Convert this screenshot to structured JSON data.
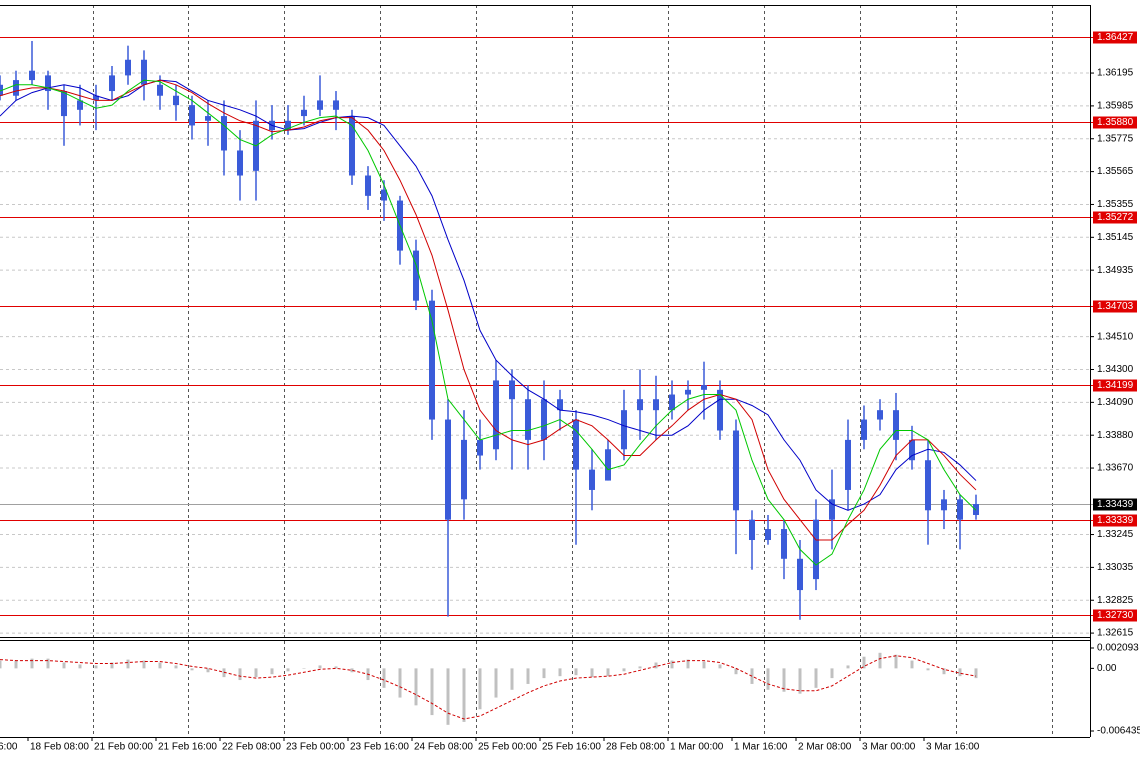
{
  "chart_data": {
    "type": "candlestick",
    "x": [
      0,
      4,
      8,
      12,
      16,
      20,
      24,
      28,
      32,
      36,
      40,
      44,
      48,
      52,
      56,
      60,
      64,
      68,
      72,
      76,
      80,
      84,
      88,
      92,
      96,
      100,
      104,
      108,
      112,
      116,
      120,
      124,
      128,
      132,
      136,
      140,
      144,
      148,
      152,
      156,
      160,
      164,
      168,
      172,
      176,
      180,
      184,
      188,
      192,
      196,
      200,
      204,
      208,
      212,
      216,
      220,
      224,
      228,
      232,
      236,
      240,
      244
    ],
    "open": [
      1.3612,
      1.3605,
      1.3615,
      1.3618,
      1.3608,
      1.3596,
      1.3602,
      1.3608,
      1.3618,
      1.3628,
      1.3612,
      1.3605,
      1.3599,
      1.3589,
      1.3592,
      1.357,
      1.3557,
      1.3589,
      1.3583,
      1.3592,
      1.3596,
      1.3602,
      1.3592,
      1.3554,
      1.3545,
      1.3538,
      1.3506,
      1.3474,
      1.3398,
      1.3347,
      1.3385,
      1.3379,
      1.3423,
      1.3411,
      1.3385,
      1.3411,
      1.3398,
      1.3366,
      1.3359,
      1.3379,
      1.3404,
      1.3411,
      1.3404,
      1.3414,
      1.3417,
      1.3417,
      1.3391,
      1.3334,
      1.3321,
      1.3328,
      1.3309,
      1.3296,
      1.3334,
      1.3353,
      1.3385,
      1.3398,
      1.3404,
      1.3385,
      1.3372,
      1.334,
      1.3347,
      1.3337
    ],
    "high": [
      1.3618,
      1.3621,
      1.364,
      1.3621,
      1.3612,
      1.3612,
      1.3612,
      1.3624,
      1.3637,
      1.3634,
      1.3618,
      1.3612,
      1.3605,
      1.3602,
      1.3602,
      1.3583,
      1.3602,
      1.3599,
      1.3599,
      1.3605,
      1.3618,
      1.3608,
      1.3596,
      1.356,
      1.3551,
      1.3541,
      1.3513,
      1.3481,
      1.3411,
      1.3404,
      1.3398,
      1.3436,
      1.343,
      1.342,
      1.3423,
      1.3417,
      1.3404,
      1.3379,
      1.3385,
      1.3417,
      1.343,
      1.3426,
      1.3423,
      1.3423,
      1.3435,
      1.3423,
      1.3398,
      1.334,
      1.3337,
      1.3334,
      1.3321,
      1.3347,
      1.3366,
      1.3398,
      1.3407,
      1.3411,
      1.3415,
      1.3394,
      1.3385,
      1.3353,
      1.335,
      1.335
    ],
    "low": [
      1.3602,
      1.3602,
      1.3612,
      1.3596,
      1.3573,
      1.3586,
      1.3583,
      1.3602,
      1.3612,
      1.3602,
      1.3596,
      1.3589,
      1.3577,
      1.3573,
      1.3554,
      1.3538,
      1.3538,
      1.3577,
      1.358,
      1.3586,
      1.3592,
      1.3583,
      1.3548,
      1.3532,
      1.3525,
      1.3497,
      1.3468,
      1.3385,
      1.3272,
      1.3334,
      1.3366,
      1.3372,
      1.3366,
      1.3366,
      1.3372,
      1.3391,
      1.3318,
      1.334,
      1.3359,
      1.3372,
      1.3385,
      1.3385,
      1.3398,
      1.3404,
      1.3398,
      1.3385,
      1.3312,
      1.3302,
      1.3318,
      1.3296,
      1.327,
      1.3289,
      1.3315,
      1.334,
      1.3379,
      1.3391,
      1.3372,
      1.3366,
      1.3318,
      1.3328,
      1.3315,
      1.3334
    ],
    "close": [
      1.3605,
      1.3615,
      1.3621,
      1.3608,
      1.3592,
      1.3602,
      1.3605,
      1.3618,
      1.3628,
      1.3612,
      1.3605,
      1.3599,
      1.3586,
      1.3592,
      1.357,
      1.3554,
      1.3589,
      1.3583,
      1.3589,
      1.3596,
      1.3602,
      1.3596,
      1.3554,
      1.3541,
      1.3538,
      1.3506,
      1.3474,
      1.3398,
      1.3334,
      1.3385,
      1.3375,
      1.3423,
      1.3411,
      1.3385,
      1.3411,
      1.3404,
      1.3366,
      1.3353,
      1.3379,
      1.3404,
      1.3411,
      1.3404,
      1.3414,
      1.3417,
      1.342,
      1.3391,
      1.334,
      1.3321,
      1.3328,
      1.3309,
      1.3289,
      1.3334,
      1.3347,
      1.3385,
      1.3398,
      1.3404,
      1.3385,
      1.3372,
      1.334,
      1.3347,
      1.3334,
      1.3344
    ],
    "color": "#3a5bd9",
    "ma_lines": [
      {
        "color": "#0000c8",
        "values": [
          1.3592,
          1.3602,
          1.3607,
          1.361,
          1.3612,
          1.361,
          1.3605,
          1.3602,
          1.3605,
          1.3612,
          1.3615,
          1.3614,
          1.3608,
          1.3602,
          1.3599,
          1.3596,
          1.3592,
          1.3586,
          1.3583,
          1.3584,
          1.3588,
          1.3591,
          1.3592,
          1.3591,
          1.3586,
          1.3573,
          1.356,
          1.3541,
          1.3513,
          1.3487,
          1.3455,
          1.3436,
          1.3426,
          1.3417,
          1.3411,
          1.3404,
          1.3403,
          1.3401,
          1.3398,
          1.3394,
          1.3391,
          1.3388,
          1.3388,
          1.3394,
          1.3404,
          1.3411,
          1.3411,
          1.3407,
          1.3401,
          1.3385,
          1.3372,
          1.3353,
          1.3344,
          1.334,
          1.3344,
          1.335,
          1.3366,
          1.3375,
          1.3379,
          1.3377,
          1.3369,
          1.3359
        ]
      },
      {
        "color": "#d00000",
        "values": [
          1.3605,
          1.3608,
          1.361,
          1.361,
          1.3608,
          1.3605,
          1.3602,
          1.3602,
          1.3607,
          1.3612,
          1.3615,
          1.3612,
          1.3607,
          1.36,
          1.3594,
          1.3589,
          1.3586,
          1.3582,
          1.3583,
          1.3585,
          1.3589,
          1.3591,
          1.3591,
          1.3583,
          1.357,
          1.3551,
          1.3529,
          1.3503,
          1.3468,
          1.343,
          1.3404,
          1.3391,
          1.3385,
          1.3382,
          1.3385,
          1.3392,
          1.3398,
          1.3394,
          1.3385,
          1.3375,
          1.3375,
          1.3385,
          1.3394,
          1.3404,
          1.3411,
          1.3414,
          1.3411,
          1.3398,
          1.3366,
          1.3347,
          1.3334,
          1.3321,
          1.3321,
          1.3331,
          1.334,
          1.3356,
          1.3375,
          1.3385,
          1.3385,
          1.3375,
          1.3363,
          1.3353
        ]
      },
      {
        "color": "#00c800",
        "values": [
          1.3608,
          1.3612,
          1.3612,
          1.361,
          1.3607,
          1.3602,
          1.3597,
          1.3599,
          1.3608,
          1.3615,
          1.3614,
          1.3608,
          1.3602,
          1.3594,
          1.3586,
          1.3577,
          1.3573,
          1.358,
          1.3584,
          1.3588,
          1.3591,
          1.3592,
          1.3586,
          1.357,
          1.3548,
          1.3522,
          1.3497,
          1.3461,
          1.3411,
          1.3398,
          1.3385,
          1.3388,
          1.3391,
          1.3391,
          1.3394,
          1.3398,
          1.3391,
          1.3379,
          1.3366,
          1.3369,
          1.3382,
          1.3394,
          1.3404,
          1.3411,
          1.3414,
          1.3414,
          1.3404,
          1.3372,
          1.3347,
          1.3334,
          1.3315,
          1.3305,
          1.3312,
          1.3334,
          1.3353,
          1.3379,
          1.3391,
          1.3391,
          1.3385,
          1.3366,
          1.335,
          1.334
        ]
      }
    ],
    "levels": [
      1.36427,
      {
        "value": 1.3588,
        "label": "1.35880"
      },
      1.35272,
      1.34703,
      1.34199,
      1.33339,
      {
        "value": 1.3273,
        "label": "1.32730"
      }
    ],
    "level_color": "#e00000",
    "current_price": 1.33439,
    "xlim": [
      0,
      272.5
    ],
    "ylim": [
      1.3259,
      1.3663
    ],
    "yticks": [
      1.36195,
      1.35985,
      1.35775,
      1.35565,
      1.35355,
      1.35145,
      1.34935,
      {
        "value": 1.3451,
        "label": "1.34510"
      },
      {
        "value": 1.343,
        "label": "1.34300"
      },
      {
        "value": 1.3409,
        "label": "1.34090"
      },
      {
        "value": 1.3388,
        "label": "1.33880"
      },
      {
        "value": 1.3367,
        "label": "1.33670"
      },
      1.33245,
      1.33035,
      1.32825,
      1.32615
    ],
    "xticks": [
      {
        "value": -1,
        "label": "6:00"
      },
      {
        "value": 7,
        "label": "18 Feb 08:00"
      },
      {
        "value": 23,
        "label": "21 Feb 00:00"
      },
      {
        "value": 39,
        "label": "21 Feb 16:00"
      },
      {
        "value": 55,
        "label": "22 Feb 08:00"
      },
      {
        "value": 71,
        "label": "23 Feb 00:00"
      },
      {
        "value": 87,
        "label": "23 Feb 16:00"
      },
      {
        "value": 103,
        "label": "24 Feb 08:00"
      },
      {
        "value": 119,
        "label": "25 Feb 00:00"
      },
      {
        "value": 135,
        "label": "25 Feb 16:00"
      },
      {
        "value": 151,
        "label": "28 Feb 08:00"
      },
      {
        "value": 167,
        "label": "1 Mar 00:00"
      },
      {
        "value": 183,
        "label": "1 Mar 16:00"
      },
      {
        "value": 199,
        "label": "2 Mar 08:00"
      },
      {
        "value": 215,
        "label": "3 Mar 00:00"
      },
      {
        "value": 231,
        "label": "3 Mar 16:00"
      }
    ],
    "x_grid": [
      23.25,
      47,
      71,
      95,
      119,
      143,
      167,
      191,
      215,
      239,
      263
    ],
    "grid": true,
    "oscillator": {
      "histogram": [
        0.0008,
        0.0008,
        0.001,
        0.001,
        0.0006,
        0.0004,
        0.0003,
        0.0006,
        0.0009,
        0.0008,
        0.0006,
        0.0003,
        -0.0002,
        -0.0004,
        -0.0009,
        -0.0012,
        -0.0009,
        -0.0006,
        -0.0003,
        0,
        0.0003,
        0.0002,
        -0.0004,
        -0.0012,
        -0.002,
        -0.003,
        -0.0038,
        -0.0048,
        -0.0058,
        -0.0055,
        -0.0042,
        -0.003,
        -0.0022,
        -0.0016,
        -0.001,
        -0.0008,
        -0.0007,
        -0.0009,
        -0.0008,
        -0.0003,
        0.0002,
        0.0006,
        0.0008,
        0.0009,
        0.0007,
        0.0004,
        -0.0006,
        -0.0016,
        -0.0022,
        -0.0024,
        -0.0026,
        -0.002,
        -0.001,
        0.0003,
        0.0012,
        0.0016,
        0.0014,
        0.0008,
        -0.0002,
        -0.0006,
        -0.0008,
        -0.001
      ],
      "histogram_color": "#c0c0c0",
      "signal": [
        0.0009,
        0.0008,
        0.0008,
        0.0008,
        0.0007,
        0.0006,
        0.0005,
        0.0005,
        0.0006,
        0.0007,
        0.0007,
        0.0005,
        0.0002,
        0,
        -0.0004,
        -0.0008,
        -0.001,
        -0.0009,
        -0.0007,
        -0.0004,
        -0.0001,
        0,
        -0.0002,
        -0.0006,
        -0.0012,
        -0.0019,
        -0.0027,
        -0.0036,
        -0.0046,
        -0.0052,
        -0.0049,
        -0.0041,
        -0.0033,
        -0.0025,
        -0.0018,
        -0.0013,
        -0.001,
        -0.0009,
        -0.0008,
        -0.0006,
        -0.0002,
        0.0002,
        0.0006,
        0.0008,
        0.0008,
        0.0006,
        0,
        -0.0008,
        -0.0016,
        -0.0021,
        -0.0023,
        -0.0023,
        -0.0018,
        -0.0008,
        0.0002,
        0.001,
        0.0013,
        0.0011,
        0.0005,
        -0.0001,
        -0.0005,
        -0.0008
      ],
      "signal_color": "#d00000",
      "ylim": [
        -0.006435,
        0.002093
      ],
      "yticks": [
        0.002093,
        {
          "value": 0,
          "label": "0.00"
        },
        -0.006435
      ]
    }
  }
}
